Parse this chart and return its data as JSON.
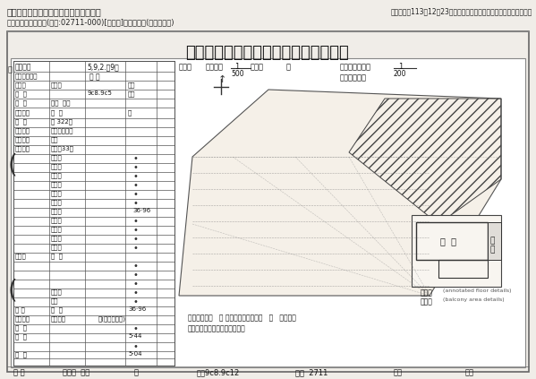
{
  "bg_color": "#f0ede8",
  "header_bg": "#e8e4de",
  "title": "臺北縣中和地政事務所建物測量成果圖",
  "top_left_system": "北北桃地政電傳全功能地籍資料查詢系統",
  "top_right_query": "查詢日期：113年12月23日（如需登記謄本，請向地政事務所申請。）",
  "top_left_sub": "新北市永和區水平段(建號:02711-000)[第二類]建物平面圖(已縮小列印)",
  "outer_rect_color": "#888888",
  "inner_bg": "#ffffff",
  "footer_left": "永 和",
  "footer_city": "鄉鎮市  永平",
  "footer_section": "段",
  "footer_sub": "小段9c8.9c12",
  "footer_land": "地號  2711",
  "footer_build": "建號",
  "footer_owner": "核失"
}
